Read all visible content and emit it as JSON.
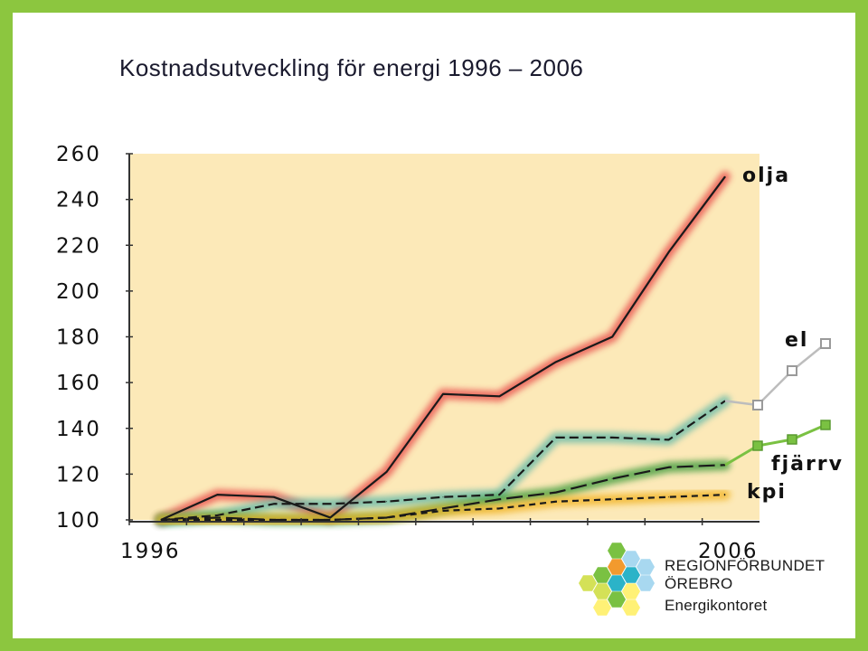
{
  "slide": {
    "title": "Kostnadsutveckling för energi 1996 – 2006",
    "border_color": "#8cc63f"
  },
  "chart_data": {
    "type": "line",
    "title": "Kostnadsutveckling för energi 1996 – 2006",
    "xlabel": "",
    "ylabel": "",
    "x_start_label": "1996",
    "x_end_label": "2006",
    "x": [
      1996,
      1997,
      1998,
      1999,
      2000,
      2001,
      2002,
      2003,
      2004,
      2005,
      2006
    ],
    "ylim": [
      100,
      260
    ],
    "yticks": [
      260,
      240,
      220,
      200,
      180,
      160,
      140,
      120,
      100
    ],
    "plot_background": "#fce9b8",
    "grid": false,
    "series": [
      {
        "name": "olja",
        "color": "#e84a4a",
        "dash": "solid",
        "values": [
          100,
          111,
          110,
          101,
          121,
          155,
          154,
          169,
          180,
          217,
          250
        ]
      },
      {
        "name": "el",
        "color": "#5fb8a8",
        "dash": "dashed",
        "values": [
          100,
          102,
          107,
          107,
          108,
          110,
          111,
          136,
          136,
          135,
          152
        ]
      },
      {
        "name": "fjärrv",
        "color": "#3a9a3a",
        "dash": "longdash",
        "values": [
          100,
          101,
          100,
          100,
          101,
          105,
          109,
          112,
          118,
          123,
          124
        ]
      },
      {
        "name": "kpi",
        "color": "#f2b320",
        "dash": "shortdash",
        "values": [
          100,
          100,
          100,
          100,
          101,
          104,
          105,
          108,
          109,
          110,
          111
        ]
      }
    ],
    "legend_markers": [
      {
        "series": "el",
        "marker": "open-square",
        "color": "#9a9a9a"
      },
      {
        "series": "fjärrv",
        "marker": "filled-square",
        "color": "#7ac142"
      }
    ]
  },
  "logo": {
    "line1": "REGIONFÖRBUNDET",
    "line2": "ÖREBRO",
    "line3": "Energikontoret",
    "hex_colors": [
      "#7ac142",
      "#a8d8f0",
      "#f29a2e",
      "#2bb3c8",
      "#d4e157",
      "#fff176"
    ]
  }
}
